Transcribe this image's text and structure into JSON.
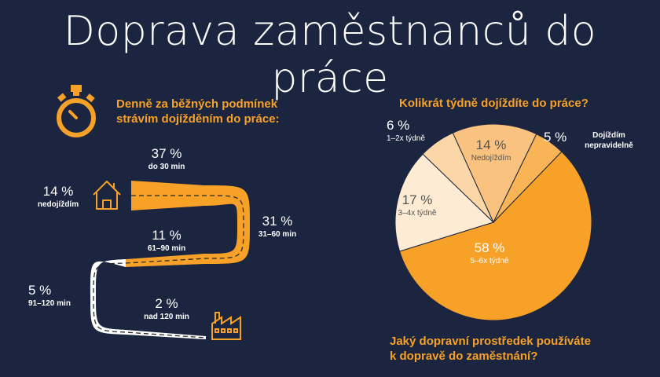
{
  "title": "Doprava zaměstnanců do práce",
  "commute_time": {
    "heading_line1": "Denně za běžných podmínek",
    "heading_line2": "strávím dojížděním do práce:",
    "chart_data": {
      "type": "bar",
      "categories": [
        "nedojíždím",
        "do 30 min",
        "31–60 min",
        "61–90 min",
        "91–120 min",
        "nad 120 min"
      ],
      "values": [
        14,
        37,
        31,
        11,
        5,
        2
      ],
      "value_labels": [
        "14 %",
        "37 %",
        "31 %",
        "11 %",
        "5 %",
        "2 %"
      ]
    }
  },
  "frequency": {
    "heading": "Kolikrát týdně dojíždíte do práce?",
    "chart_data": {
      "type": "pie",
      "title": "Kolikrát týdně dojíždíte do práce?",
      "categories": [
        "5–6x týdně",
        "3–4x týdně",
        "1–2x týdně",
        "Nedojíždím",
        "Dojíždím nepravidelně"
      ],
      "values": [
        58,
        17,
        6,
        14,
        5
      ],
      "value_labels": [
        "58 %",
        "17 %",
        "6 %",
        "14 %",
        "5 %"
      ],
      "colors": [
        "#f7a128",
        "#fdebd3",
        "#fbd6a6",
        "#f9c27e",
        "#f8b456"
      ]
    }
  },
  "transport_question": {
    "line1": "Jaký dopravní prostředek používáte",
    "line2": "k dopravě do zaměstnání?"
  },
  "icons": [
    "stopwatch-icon",
    "house-icon",
    "factory-icon"
  ],
  "colors": {
    "background": "#1c2540",
    "accent": "#f7a128",
    "text": "#ffffff"
  }
}
